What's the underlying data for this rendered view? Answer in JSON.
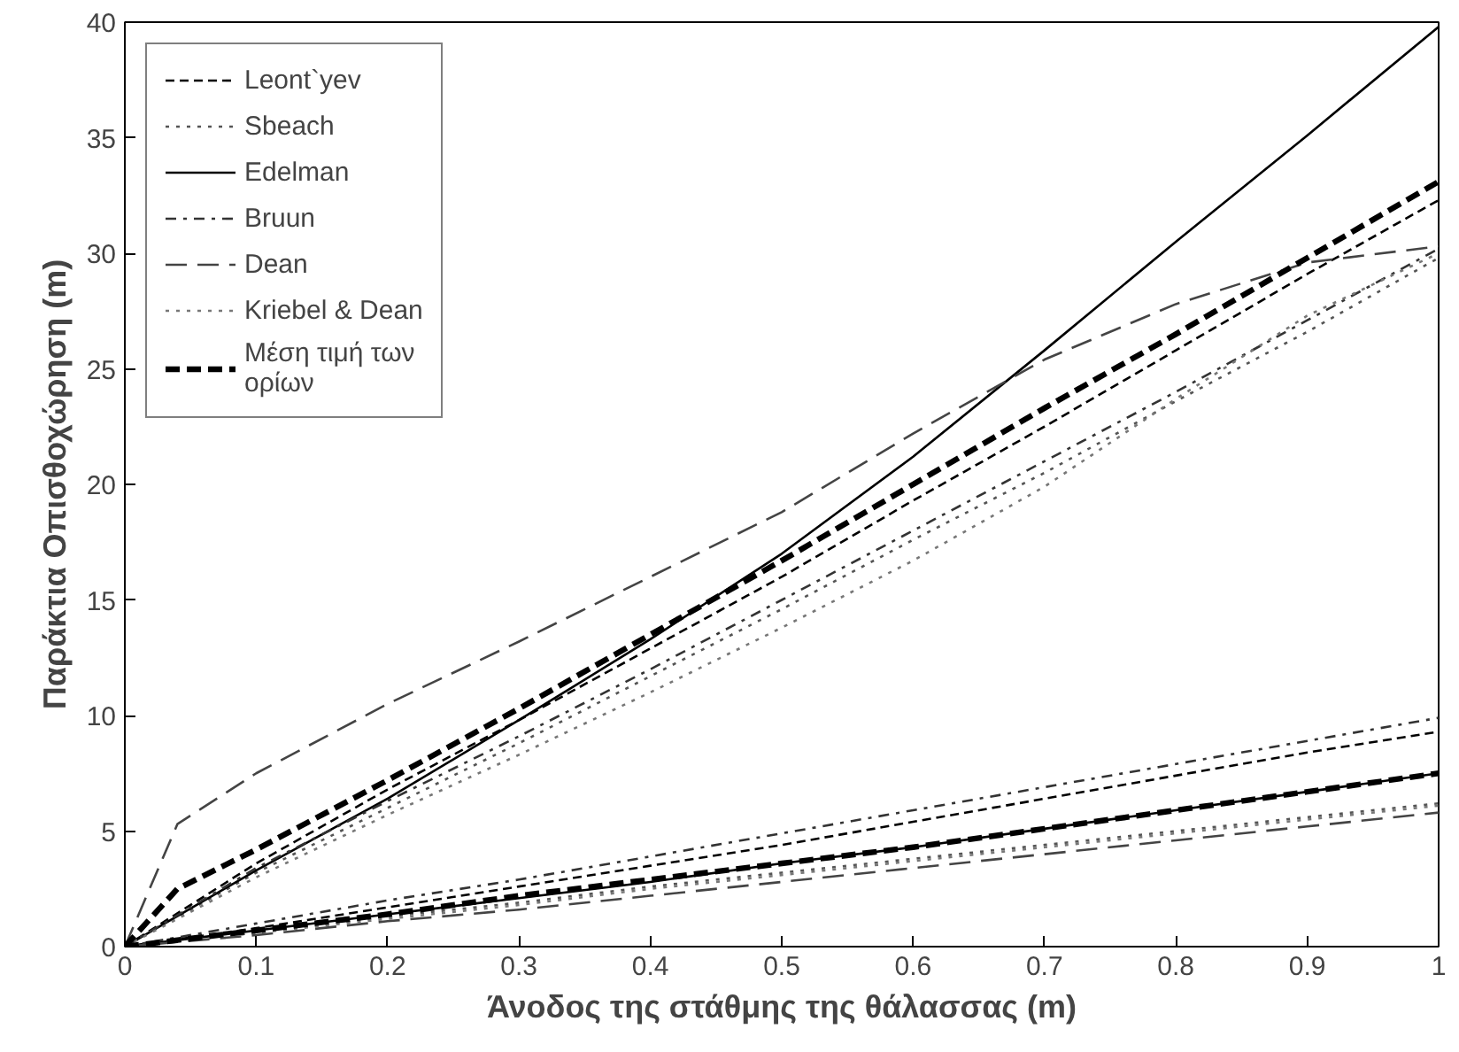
{
  "chart_data": {
    "type": "line",
    "xlabel": "Άνοδος της στάθμης της θάλασσας (m)",
    "ylabel": "Παράκτια Οπισθοχώρηση (m)",
    "x": [
      0,
      0.1,
      0.2,
      0.3,
      0.4,
      0.5,
      0.6,
      0.7,
      0.8,
      0.9,
      1
    ],
    "xlim": [
      0,
      1
    ],
    "ylim": [
      0,
      40
    ],
    "xticks": [
      0,
      0.1,
      0.2,
      0.3,
      0.4,
      0.5,
      0.6,
      0.7,
      0.8,
      0.9,
      1
    ],
    "yticks": [
      0,
      5,
      10,
      15,
      20,
      25,
      30,
      35,
      40
    ],
    "grid": false,
    "legend": "top left",
    "marker": "none",
    "series": [
      {
        "name": "Leont`yev",
        "color": "#000000",
        "line_style": "dashed",
        "values": [
          0,
          3.6,
          6.8,
          9.8,
          12.9,
          16.0,
          19.3,
          22.5,
          25.8,
          29.1,
          32.3
        ]
      },
      {
        "name": "Sbeach",
        "color": "#555555",
        "line_style": "dotted",
        "values": [
          0,
          3.2,
          6.0,
          8.8,
          11.7,
          14.6,
          17.6,
          20.5,
          23.6,
          26.6,
          29.8
        ]
      },
      {
        "name": "Edelman",
        "color": "#000000",
        "line_style": "solid",
        "values": [
          0,
          3.3,
          6.4,
          9.8,
          13.3,
          17.0,
          21.2,
          25.8,
          30.5,
          35.1,
          39.8
        ]
      },
      {
        "name": "Bruun",
        "color": "#333333",
        "line_style": "dashdot",
        "values": [
          0,
          3.4,
          6.3,
          9.1,
          12.0,
          15.0,
          18.0,
          21.0,
          24.0,
          27.1,
          30.2
        ]
      },
      {
        "name": "Dean",
        "color": "#444444",
        "line_style": "longdash",
        "x": [
          0,
          0.04,
          0.1,
          0.2,
          0.3,
          0.4,
          0.5,
          0.6,
          0.7,
          0.8,
          0.9,
          1
        ],
        "values": [
          0,
          5.3,
          7.5,
          10.5,
          13.2,
          16.0,
          18.8,
          22.2,
          25.4,
          27.8,
          29.6,
          30.3
        ]
      },
      {
        "name": "Kriebel & Dean",
        "color": "#777777",
        "line_style": "dotted",
        "values": [
          0,
          3.0,
          5.7,
          8.3,
          11.0,
          13.8,
          16.7,
          19.9,
          23.7,
          27.3,
          30.0
        ]
      },
      {
        "name": "Μέση τιμή των ορίων",
        "color": "#000000",
        "line_style": "heavydashed",
        "x": [
          0,
          0.04,
          0.1,
          0.2,
          0.3,
          0.4,
          0.5,
          0.6,
          0.7,
          0.8,
          0.9,
          1
        ],
        "values": [
          0,
          2.5,
          4.2,
          7.2,
          10.3,
          13.5,
          16.7,
          20.0,
          23.3,
          26.5,
          29.8,
          33.1
        ]
      },
      {
        "color": "#000000",
        "line_style": "dashed",
        "values": [
          0,
          0.8,
          1.7,
          2.6,
          3.5,
          4.4,
          5.4,
          6.4,
          7.4,
          8.4,
          9.3
        ]
      },
      {
        "color": "#555555",
        "line_style": "dotted",
        "values": [
          0,
          0.6,
          1.3,
          1.9,
          2.6,
          3.2,
          3.8,
          4.4,
          5.0,
          5.6,
          6.2
        ]
      },
      {
        "color": "#000000",
        "line_style": "solid",
        "values": [
          0,
          0.7,
          1.4,
          2.1,
          2.8,
          3.6,
          4.3,
          5.1,
          5.9,
          6.7,
          7.5
        ]
      },
      {
        "color": "#333333",
        "line_style": "dashdot",
        "values": [
          0,
          1.0,
          2.0,
          2.9,
          3.9,
          4.9,
          5.9,
          6.9,
          7.9,
          8.9,
          9.9
        ]
      },
      {
        "color": "#444444",
        "line_style": "longdash",
        "values": [
          0,
          0.5,
          1.1,
          1.6,
          2.2,
          2.8,
          3.4,
          4.0,
          4.6,
          5.2,
          5.8
        ]
      },
      {
        "color": "#777777",
        "line_style": "dotted",
        "values": [
          0,
          0.6,
          1.2,
          1.8,
          2.5,
          3.1,
          3.7,
          4.3,
          4.9,
          5.5,
          6.1
        ]
      },
      {
        "color": "#000000",
        "line_style": "heavydashed",
        "values": [
          0,
          0.7,
          1.4,
          2.2,
          2.9,
          3.6,
          4.3,
          5.1,
          5.9,
          6.7,
          7.5
        ]
      }
    ]
  }
}
